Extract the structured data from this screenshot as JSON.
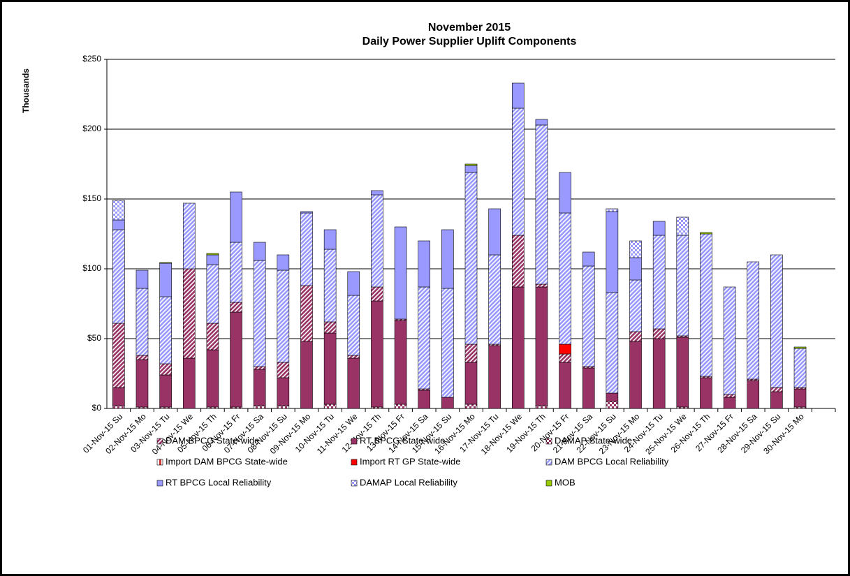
{
  "chart_data": {
    "type": "stacked_bar",
    "title": "November 2015",
    "subtitle": "Daily Power Supplier Uplift Components",
    "y_label": "Thousands",
    "categories": [
      "01-Nov-15 Su",
      "02-Nov-15 Mo",
      "03-Nov-15 Tu",
      "04-Nov-15 We",
      "05-Nov-15 Th",
      "06-Nov-15 Fr",
      "07-Nov-15 Sa",
      "08-Nov-15 Su",
      "09-Nov-15 Mo",
      "10-Nov-15 Tu",
      "11-Nov-15 We",
      "12-Nov-15 Th",
      "13-Nov-15 Fr",
      "14-Nov-15 Sa",
      "15-Nov-15 Su",
      "16-Nov-15 Mo",
      "17-Nov-15 Tu",
      "18-Nov-15 We",
      "19-Nov-15 Th",
      "20-Nov-15 Fr",
      "21-Nov-15 Sa",
      "22-Nov-15 Su",
      "23-Nov-15 Mo",
      "24-Nov-15 Tu",
      "25-Nov-15 We",
      "26-Nov-15 Th",
      "27-Nov-15 Fr",
      "28-Nov-15 Sa",
      "29-Nov-15 Su",
      "30-Nov-15 Mo",
      null
    ],
    "series": [
      {
        "name": "DAM BPCG State-wide",
        "color": "#993366",
        "pattern": "diagonal",
        "values": [
          46,
          3,
          8,
          64,
          19,
          7,
          2,
          11,
          40,
          8,
          2,
          10,
          1,
          1,
          0,
          13,
          1,
          37,
          2,
          6,
          1,
          0,
          7,
          7,
          1,
          1,
          2,
          1,
          3,
          1,
          null
        ]
      },
      {
        "name": "RT BPCG State-wide",
        "color": "#993366",
        "pattern": "solid",
        "values": [
          13,
          34,
          23,
          36,
          41,
          68,
          26,
          20,
          48,
          51,
          36,
          76,
          60,
          13,
          8,
          30,
          45,
          87,
          85,
          33,
          29,
          6,
          48,
          50,
          50,
          22,
          8,
          20,
          12,
          13,
          null
        ]
      },
      {
        "name": "DAMAP State-wide",
        "color": "#993366",
        "pattern": "checker",
        "values": [
          2,
          1,
          1,
          0,
          1,
          1,
          2,
          2,
          0,
          3,
          0,
          1,
          3,
          0,
          0,
          3,
          0,
          0,
          2,
          0,
          0,
          5,
          0,
          0,
          1,
          0,
          0,
          0,
          0,
          1,
          null
        ]
      },
      {
        "name": "Import DAM BPCG State-wide",
        "color": "#cc3333",
        "pattern": "vertical",
        "values": [
          0,
          0,
          0,
          0,
          0,
          0,
          0,
          0,
          0,
          0,
          0,
          0,
          0,
          0,
          0,
          0,
          0,
          0,
          0,
          0,
          0,
          0,
          0,
          0,
          0,
          0,
          0,
          0,
          0,
          0,
          null
        ]
      },
      {
        "name": "Import RT GP State-wide",
        "color": "#ff0000",
        "pattern": "solid",
        "values": [
          0,
          0,
          0,
          0,
          0,
          0,
          0,
          0,
          0,
          0,
          0,
          0,
          0,
          0,
          0,
          0,
          0,
          0,
          0,
          7,
          0,
          0,
          0,
          0,
          0,
          0,
          0,
          0,
          0,
          0,
          null
        ]
      },
      {
        "name": "DAM BPCG Local Reliability",
        "color": "#9999ff",
        "pattern": "diagonal",
        "values": [
          67,
          48,
          48,
          47,
          42,
          43,
          76,
          66,
          52,
          52,
          43,
          66,
          0,
          73,
          78,
          123,
          64,
          91,
          114,
          94,
          72,
          72,
          37,
          67,
          72,
          102,
          77,
          84,
          95,
          28,
          null
        ]
      },
      {
        "name": "RT BPCG Local Reliability",
        "color": "#9999ff",
        "pattern": "solid",
        "values": [
          7,
          13,
          24,
          0,
          7,
          36,
          13,
          11,
          1,
          14,
          17,
          3,
          66,
          33,
          42,
          5,
          33,
          18,
          4,
          29,
          10,
          58,
          16,
          10,
          0,
          0,
          0,
          0,
          0,
          0,
          null
        ]
      },
      {
        "name": "DAMAP Local Reliability",
        "color": "#9999ff",
        "pattern": "checker",
        "values": [
          14,
          0,
          0,
          0,
          0,
          0,
          0,
          0,
          0,
          0,
          0,
          0,
          0,
          0,
          0,
          0,
          0,
          0,
          0,
          0,
          0,
          2,
          12,
          0,
          13,
          0,
          0,
          0,
          0,
          0,
          null
        ]
      },
      {
        "name": "MOB",
        "color": "#99cc00",
        "pattern": "solid",
        "values": [
          0,
          0,
          0.5,
          0,
          1,
          0,
          0,
          0,
          0,
          0,
          0,
          0,
          0,
          0,
          0,
          1,
          0,
          0,
          0,
          0,
          0,
          0,
          0,
          0,
          0,
          1,
          0,
          0,
          0,
          1,
          null
        ]
      }
    ],
    "ylim": [
      0,
      250
    ],
    "yticks": [
      {
        "value": 0,
        "label": "$0"
      },
      {
        "value": 50,
        "label": "$50"
      },
      {
        "value": 100,
        "label": "$100"
      },
      {
        "value": 150,
        "label": "$150"
      },
      {
        "value": 200,
        "label": "$200"
      },
      {
        "value": 250,
        "label": "$250"
      }
    ],
    "grid": true
  }
}
